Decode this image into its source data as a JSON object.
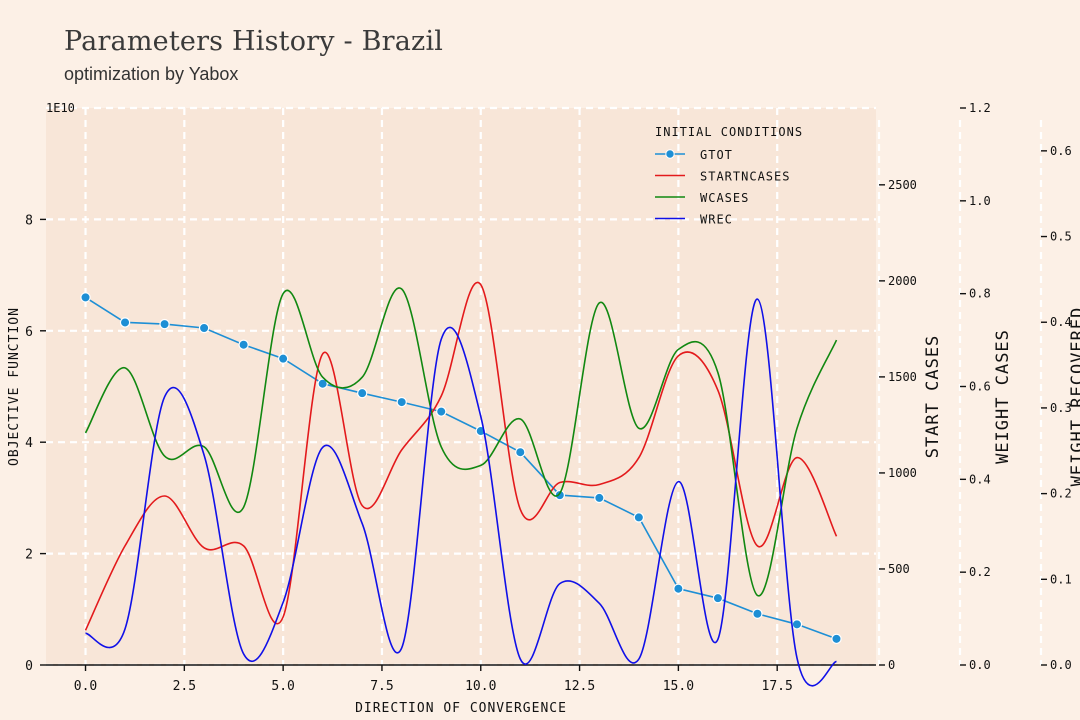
{
  "title": "Parameters History - Brazil",
  "subtitle": "optimization by Yabox",
  "chart_data": {
    "type": "line",
    "xlabel": "DIRECTION OF CONVERGENCE",
    "ylabel": "OBJECTIVE FUNCTION",
    "y_multiplier_label": "1E10",
    "xlim": [
      -1,
      20
    ],
    "xticks": [
      "0.0",
      "2.5",
      "5.0",
      "7.5",
      "10.0",
      "12.5",
      "15.0",
      "17.5"
    ],
    "xtick_values": [
      0,
      2.5,
      5,
      7.5,
      10,
      12.5,
      15,
      17.5
    ],
    "ylim": [
      0,
      10
    ],
    "yticks": [
      "0",
      "2",
      "4",
      "6",
      "8"
    ],
    "ytick_values": [
      0,
      2,
      4,
      6,
      8
    ],
    "right_axes": [
      {
        "label": "START CASES",
        "ylim": [
          0,
          2900
        ],
        "ticks": [
          "0",
          "500",
          "1000",
          "1500",
          "2000",
          "2500"
        ],
        "tick_values": [
          0,
          500,
          1000,
          1500,
          2000,
          2500
        ]
      },
      {
        "label": "WEIGHT CASES",
        "ylim": [
          0,
          1.2
        ],
        "ticks": [
          "0.0",
          "0.2",
          "0.4",
          "0.6",
          "0.8",
          "1.0",
          "1.2"
        ],
        "tick_values": [
          0,
          0.2,
          0.4,
          0.6,
          0.8,
          1.0,
          1.2
        ]
      },
      {
        "label": "WEIGHT RECOVERED",
        "ylim": [
          0,
          0.65
        ],
        "ticks": [
          "0.0",
          "0.1",
          "0.2",
          "0.3",
          "0.4",
          "0.5",
          "0.6"
        ],
        "tick_values": [
          0,
          0.1,
          0.2,
          0.3,
          0.4,
          0.5,
          0.6
        ]
      }
    ],
    "legend_title": "INITIAL CONDITIONS",
    "legend_position": "top-right",
    "grid": true,
    "series": [
      {
        "name": "GTOT",
        "axis": 0,
        "color": "#1e8fd5",
        "markers": true,
        "x": [
          0,
          1,
          2,
          3,
          4,
          5,
          6,
          7,
          8,
          9,
          10,
          11,
          12,
          13,
          14,
          15,
          16,
          17,
          18,
          19
        ],
        "values": [
          6.6,
          6.15,
          6.12,
          6.05,
          5.75,
          5.5,
          5.05,
          4.88,
          4.72,
          4.55,
          4.2,
          3.82,
          3.05,
          3.0,
          2.65,
          1.37,
          1.2,
          0.92,
          0.73,
          0.47
        ]
      },
      {
        "name": "STARTNCASES",
        "axis": 1,
        "color": "#e31a1c",
        "markers": false,
        "x": [
          0,
          1,
          2,
          3,
          4,
          5,
          6,
          7,
          8,
          9,
          10,
          11,
          12,
          13,
          14,
          15,
          16,
          17,
          18,
          19
        ],
        "values": [
          180,
          620,
          880,
          610,
          620,
          250,
          1620,
          830,
          1120,
          1400,
          1980,
          810,
          950,
          940,
          1080,
          1610,
          1430,
          620,
          1080,
          670
        ]
      },
      {
        "name": "WCASES",
        "axis": 2,
        "color": "#118811",
        "markers": false,
        "x": [
          0,
          1,
          2,
          3,
          4,
          5,
          6,
          7,
          8,
          9,
          10,
          11,
          12,
          13,
          14,
          15,
          16,
          17,
          18,
          19
        ],
        "values": [
          0.5,
          0.64,
          0.45,
          0.47,
          0.34,
          0.8,
          0.62,
          0.62,
          0.81,
          0.47,
          0.43,
          0.53,
          0.37,
          0.78,
          0.51,
          0.68,
          0.63,
          0.15,
          0.51,
          0.7
        ]
      },
      {
        "name": "WREC",
        "axis": 3,
        "color": "#1010e8",
        "markers": false,
        "x": [
          0,
          1,
          2,
          3,
          4,
          5,
          6,
          7,
          8,
          9,
          10,
          11,
          12,
          13,
          14,
          15,
          16,
          17,
          18,
          19
        ],
        "values": [
          0.037,
          0.042,
          0.313,
          0.245,
          0.013,
          0.073,
          0.254,
          0.165,
          0.02,
          0.38,
          0.29,
          0.007,
          0.095,
          0.072,
          0.007,
          0.214,
          0.03,
          0.427,
          0.008,
          0.004
        ]
      }
    ]
  }
}
